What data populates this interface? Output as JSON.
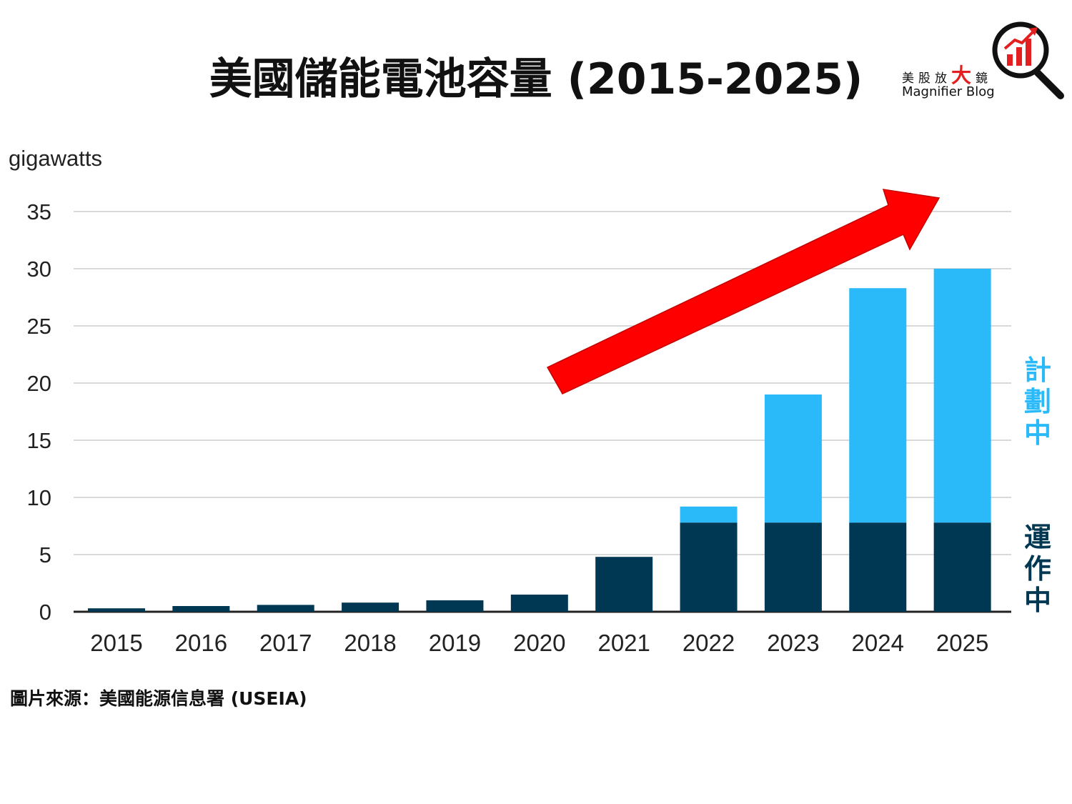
{
  "header": {
    "title": "美國儲能電池容量 (2015-2025)"
  },
  "logo": {
    "name_cn_pre": "美股放",
    "name_cn_big": "大",
    "name_cn_post": "鏡",
    "name_en": "Magnifier Blog"
  },
  "footer": {
    "source": "圖片來源：美國能源信息署 (USEIA)"
  },
  "colors": {
    "operating": "#003753",
    "planned": "#2bbaf9",
    "arrow": "#ff0000",
    "grid": "#d9d9d9",
    "axis": "#222222"
  },
  "chart_data": {
    "type": "bar",
    "stacked": true,
    "ylabel": "gigawatts",
    "ylim": [
      0,
      35
    ],
    "yticks": [
      0,
      5,
      10,
      15,
      20,
      25,
      30,
      35
    ],
    "categories": [
      "2015",
      "2016",
      "2017",
      "2018",
      "2019",
      "2020",
      "2021",
      "2022",
      "2023",
      "2024",
      "2025"
    ],
    "series": [
      {
        "name": "運作中",
        "values": [
          0.3,
          0.5,
          0.6,
          0.8,
          1.0,
          1.5,
          4.8,
          7.8,
          7.8,
          7.8,
          7.8
        ]
      },
      {
        "name": "計劃中",
        "values": [
          0,
          0,
          0,
          0,
          0,
          0,
          0,
          1.4,
          11.2,
          20.5,
          22.2
        ]
      }
    ],
    "legend_placement": "right",
    "annotation": "upward-trend-arrow"
  }
}
